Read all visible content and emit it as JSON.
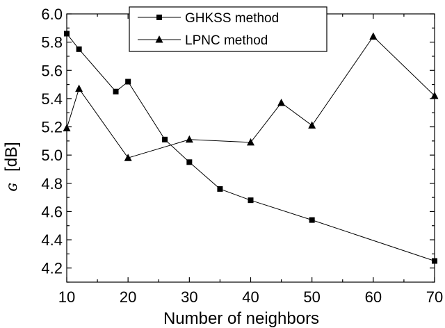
{
  "chart_data": {
    "type": "line",
    "xlabel": "Number of neighbors",
    "ylabel_symbol": "ɢ",
    "ylabel_unit": "[dB]",
    "xlim": [
      10,
      70
    ],
    "ylim": [
      4.1,
      6.0
    ],
    "x_ticks": [
      10,
      20,
      30,
      40,
      50,
      60,
      70
    ],
    "x_tick_labels": [
      "10",
      "20",
      "30",
      "40",
      "50",
      "60",
      "70"
    ],
    "y_ticks": [
      4.2,
      4.4,
      4.6,
      4.8,
      5.0,
      5.2,
      5.4,
      5.6,
      5.8,
      6.0
    ],
    "y_tick_labels": [
      "4.2",
      "4.4",
      "4.6",
      "4.8",
      "5.0",
      "5.2",
      "5.4",
      "5.6",
      "5.8",
      "6.0"
    ],
    "grid": false,
    "legend_position": "top-center",
    "series": [
      {
        "name": "GHKSS method",
        "marker": "square",
        "color": "#000000",
        "x": [
          10,
          12,
          18,
          20,
          26,
          30,
          35,
          40,
          50,
          70
        ],
        "y": [
          5.86,
          5.75,
          5.45,
          5.52,
          5.11,
          4.95,
          4.76,
          4.68,
          4.54,
          4.25
        ]
      },
      {
        "name": "LPNC method",
        "marker": "triangle",
        "color": "#000000",
        "x": [
          10,
          12,
          20,
          30,
          40,
          45,
          50,
          60,
          70
        ],
        "y": [
          5.19,
          5.47,
          4.98,
          5.11,
          5.09,
          5.37,
          5.21,
          5.84,
          5.42
        ]
      }
    ]
  }
}
